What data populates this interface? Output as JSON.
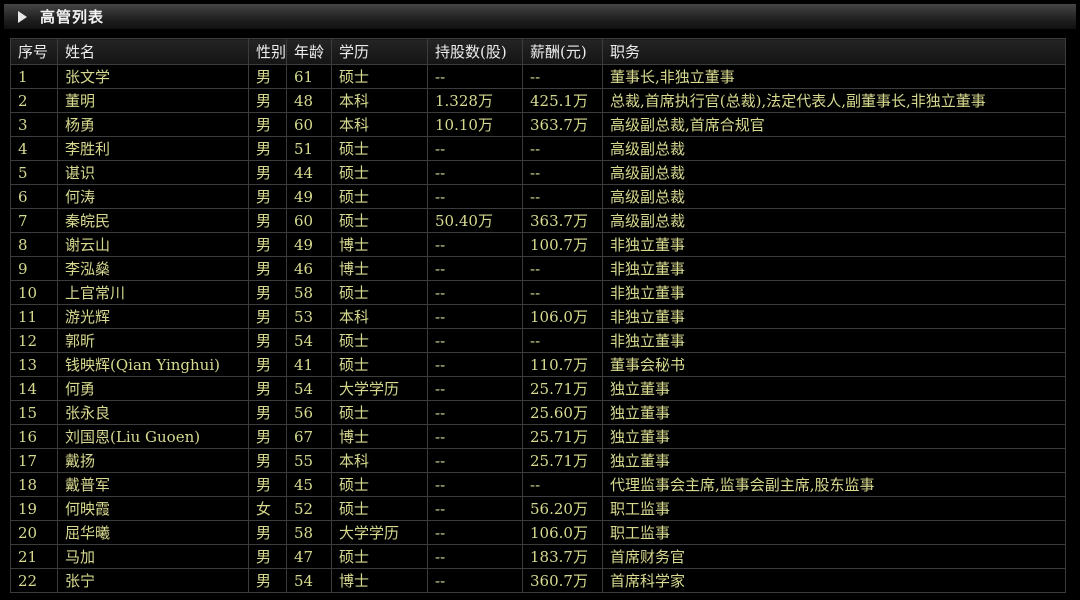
{
  "title_bar": {
    "title": "高管列表"
  },
  "table": {
    "columns": [
      {
        "key": "index",
        "label": "序号"
      },
      {
        "key": "name",
        "label": "姓名"
      },
      {
        "key": "gender",
        "label": "性别"
      },
      {
        "key": "age",
        "label": "年龄"
      },
      {
        "key": "edu",
        "label": "学历"
      },
      {
        "key": "shares",
        "label": "持股数(股)"
      },
      {
        "key": "salary",
        "label": "薪酬(元)"
      },
      {
        "key": "pos",
        "label": "职务"
      }
    ],
    "rows": [
      [
        "1",
        "张文学",
        "男",
        "61",
        "硕士",
        "--",
        "--",
        "董事长,非独立董事"
      ],
      [
        "2",
        "董明",
        "男",
        "48",
        "本科",
        "1.328万",
        "425.1万",
        "总裁,首席执行官(总裁),法定代表人,副董事长,非独立董事"
      ],
      [
        "3",
        "杨勇",
        "男",
        "60",
        "本科",
        "10.10万",
        "363.7万",
        "高级副总裁,首席合规官"
      ],
      [
        "4",
        "李胜利",
        "男",
        "51",
        "硕士",
        "--",
        "--",
        "高级副总裁"
      ],
      [
        "5",
        "谌识",
        "男",
        "44",
        "硕士",
        "--",
        "--",
        "高级副总裁"
      ],
      [
        "6",
        "何涛",
        "男",
        "49",
        "硕士",
        "--",
        "--",
        "高级副总裁"
      ],
      [
        "7",
        "秦皖民",
        "男",
        "60",
        "硕士",
        "50.40万",
        "363.7万",
        "高级副总裁"
      ],
      [
        "8",
        "谢云山",
        "男",
        "49",
        "博士",
        "--",
        "100.7万",
        "非独立董事"
      ],
      [
        "9",
        "李泓燊",
        "男",
        "46",
        "博士",
        "--",
        "--",
        "非独立董事"
      ],
      [
        "10",
        "上官常川",
        "男",
        "58",
        "硕士",
        "--",
        "--",
        "非独立董事"
      ],
      [
        "11",
        "游光辉",
        "男",
        "53",
        "本科",
        "--",
        "106.0万",
        "非独立董事"
      ],
      [
        "12",
        "郭昕",
        "男",
        "54",
        "硕士",
        "--",
        "--",
        "非独立董事"
      ],
      [
        "13",
        "钱映辉(Qian Yinghui)",
        "男",
        "41",
        "硕士",
        "--",
        "110.7万",
        "董事会秘书"
      ],
      [
        "14",
        "何勇",
        "男",
        "54",
        "大学学历",
        "--",
        "25.71万",
        "独立董事"
      ],
      [
        "15",
        "张永良",
        "男",
        "56",
        "硕士",
        "--",
        "25.60万",
        "独立董事"
      ],
      [
        "16",
        "刘国恩(Liu Guoen)",
        "男",
        "67",
        "博士",
        "--",
        "25.71万",
        "独立董事"
      ],
      [
        "17",
        "戴扬",
        "男",
        "55",
        "本科",
        "--",
        "25.71万",
        "独立董事"
      ],
      [
        "18",
        "戴普军",
        "男",
        "45",
        "硕士",
        "--",
        "--",
        "代理监事会主席,监事会副主席,股东监事"
      ],
      [
        "19",
        "何映霞",
        "女",
        "52",
        "硕士",
        "--",
        "56.20万",
        "职工监事"
      ],
      [
        "20",
        "屈华曦",
        "男",
        "58",
        "大学学历",
        "--",
        "106.0万",
        "职工监事"
      ],
      [
        "21",
        "马加",
        "男",
        "47",
        "硕士",
        "--",
        "183.7万",
        "首席财务官"
      ],
      [
        "22",
        "张宁",
        "男",
        "54",
        "博士",
        "--",
        "360.7万",
        "首席科学家"
      ]
    ]
  },
  "colors": {
    "background": "#000000",
    "row_text": "#d6d98e",
    "header_text": "#ededed",
    "border": "#3c3c3c"
  }
}
